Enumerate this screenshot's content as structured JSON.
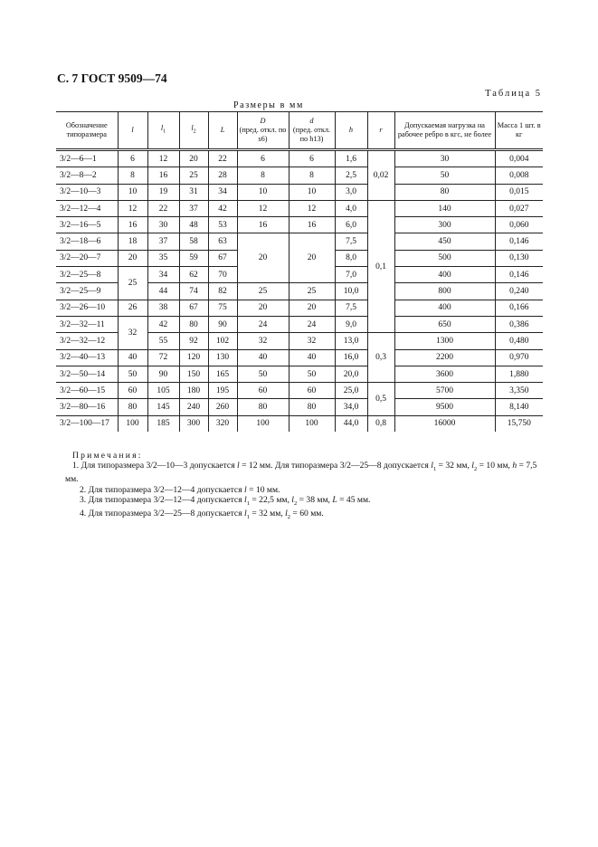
{
  "page_title": "С. 7 ГОСТ 9509—74",
  "table_label": "Таблица 5",
  "units": "Размеры в мм",
  "headers": [
    {
      "text": "Обозначение типоразмера"
    },
    {
      "sym": "l"
    },
    {
      "sym": "l",
      "sub": "1"
    },
    {
      "sym": "l",
      "sub": "2"
    },
    {
      "sym": "L"
    },
    {
      "sym": "D",
      "text": "(пред. откл. по s6)"
    },
    {
      "sym": "d",
      "text": "(пред. откл. по h13)"
    },
    {
      "sym": "h"
    },
    {
      "sym": "r"
    },
    {
      "text": "Допускаемая нагрузка на рабочее ребро в кгс, не более"
    },
    {
      "text": "Масса 1 шт. в кг"
    }
  ],
  "rows": [
    [
      "3/2—6—1",
      "6",
      "12",
      "20",
      "22",
      "6",
      "6",
      "1,6",
      "0,02",
      "30",
      "0,004"
    ],
    [
      "3/2—8—2",
      "8",
      "16",
      "25",
      "28",
      "8",
      "8",
      "2,5",
      null,
      "50",
      "0,008"
    ],
    [
      "3/2—10—3",
      "10",
      "19",
      "31",
      "34",
      "10",
      "10",
      "3,0",
      null,
      "80",
      "0,015"
    ],
    [
      "3/2—12—4",
      "12",
      "22",
      "37",
      "42",
      "12",
      "12",
      "4,0",
      "0,1",
      "140",
      "0,027"
    ],
    [
      "3/2—16—5",
      "16",
      "30",
      "48",
      "53",
      "16",
      "16",
      "6,0",
      null,
      "300",
      "0,060"
    ],
    [
      "3/2—18—6",
      "18",
      "37",
      "58",
      "63",
      "20",
      "20",
      "7,5",
      null,
      "450",
      "0,146"
    ],
    [
      "3/2—20—7",
      "20",
      "35",
      "59",
      "67",
      null,
      null,
      "8,0",
      null,
      "500",
      "0,130"
    ],
    [
      "3/2—25—8",
      "25",
      "34",
      "62",
      "70",
      null,
      null,
      "7,0",
      null,
      "400",
      "0,146"
    ],
    [
      "3/2—25—9",
      null,
      "44",
      "74",
      "82",
      "25",
      "25",
      "10,0",
      null,
      "800",
      "0,240"
    ],
    [
      "3/2—26—10",
      "26",
      "38",
      "67",
      "75",
      "20",
      "20",
      "7,5",
      null,
      "400",
      "0,166"
    ],
    [
      "3/2—32—11",
      "32",
      "42",
      "80",
      "90",
      "24",
      "24",
      "9,0",
      null,
      "650",
      "0,386"
    ],
    [
      "3/2—32—12",
      null,
      "55",
      "92",
      "102",
      "32",
      "32",
      "13,0",
      "0,3",
      "1300",
      "0,480"
    ],
    [
      "3/2—40—13",
      "40",
      "72",
      "120",
      "130",
      "40",
      "40",
      "16,0",
      null,
      "2200",
      "0,970"
    ],
    [
      "3/2—50—14",
      "50",
      "90",
      "150",
      "165",
      "50",
      "50",
      "20,0",
      null,
      "3600",
      "1,880"
    ],
    [
      "3/2—60—15",
      "60",
      "105",
      "180",
      "195",
      "60",
      "60",
      "25,0",
      "0,5",
      "5700",
      "3,350"
    ],
    [
      "3/2—80—16",
      "80",
      "145",
      "240",
      "260",
      "80",
      "80",
      "34,0",
      null,
      "9500",
      "8,140"
    ],
    [
      "3/2—100—17",
      "100",
      "185",
      "300",
      "320",
      "100",
      "100",
      "44,0",
      "0,8",
      "16000",
      "15,750"
    ]
  ],
  "notes_title": "Примечания:",
  "notes": [
    [
      {
        "t": "1. Для  типоразмера  3/2—10—3 допускается "
      },
      {
        "i": "l"
      },
      {
        "t": " = 12 мм. Для типоразмера 3/2—25—8 допускается "
      },
      {
        "i": "l",
        "sub": "1"
      },
      {
        "t": " = 32 мм, "
      },
      {
        "i": "l",
        "sub": "2"
      },
      {
        "t": " = 10 мм, "
      },
      {
        "i": "h"
      },
      {
        "t": " = 7,5 мм."
      }
    ],
    [
      {
        "t": "2. Для типоразмера 3/2—12—4 допускается "
      },
      {
        "i": "l"
      },
      {
        "t": " = 10 мм."
      }
    ],
    [
      {
        "t": "3. Для типоразмера 3/2—12—4 допускается "
      },
      {
        "i": "l",
        "sub": "1"
      },
      {
        "t": " = 22,5 мм, "
      },
      {
        "i": "l",
        "sub": "2"
      },
      {
        "t": " = 38 мм, "
      },
      {
        "i": "L"
      },
      {
        "t": " = 45 мм."
      }
    ],
    [
      {
        "t": "4. Для типоразмера 3/2—25—8 допускается "
      },
      {
        "i": "l",
        "sub": "1"
      },
      {
        "t": " = 32 мм, "
      },
      {
        "i": "l",
        "sub": "2"
      },
      {
        "t": " = 60 мм."
      }
    ]
  ]
}
